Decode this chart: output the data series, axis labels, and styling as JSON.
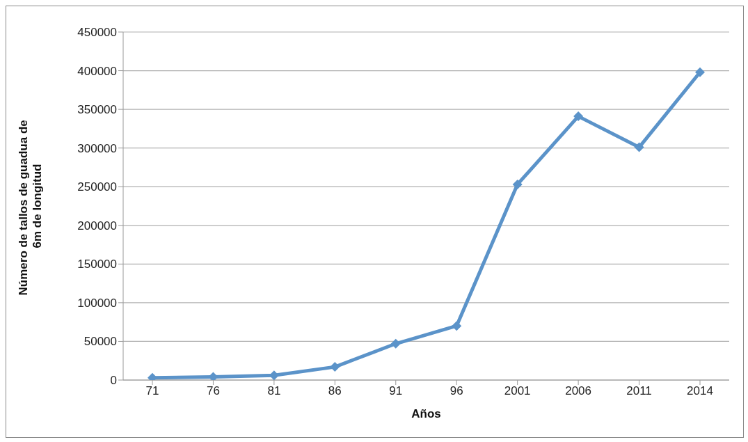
{
  "chart_data": {
    "type": "line",
    "xlabel": "Años",
    "ylabel": "Número de tallos de guadua de  6m de longitud",
    "categories": [
      "71",
      "76",
      "81",
      "86",
      "91",
      "96",
      "2001",
      "2006",
      "2011",
      "2014"
    ],
    "series": [
      {
        "color": "#5b93c9",
        "values": [
          3000,
          4000,
          6000,
          17000,
          47000,
          70000,
          253000,
          341000,
          301000,
          398000
        ]
      }
    ],
    "ylim": [
      0,
      450000
    ],
    "yticks": [
      0,
      50000,
      100000,
      150000,
      200000,
      250000,
      300000,
      350000,
      400000,
      450000
    ],
    "grid": "y",
    "marker": "diamond",
    "line_style": "solid",
    "legend": false
  }
}
